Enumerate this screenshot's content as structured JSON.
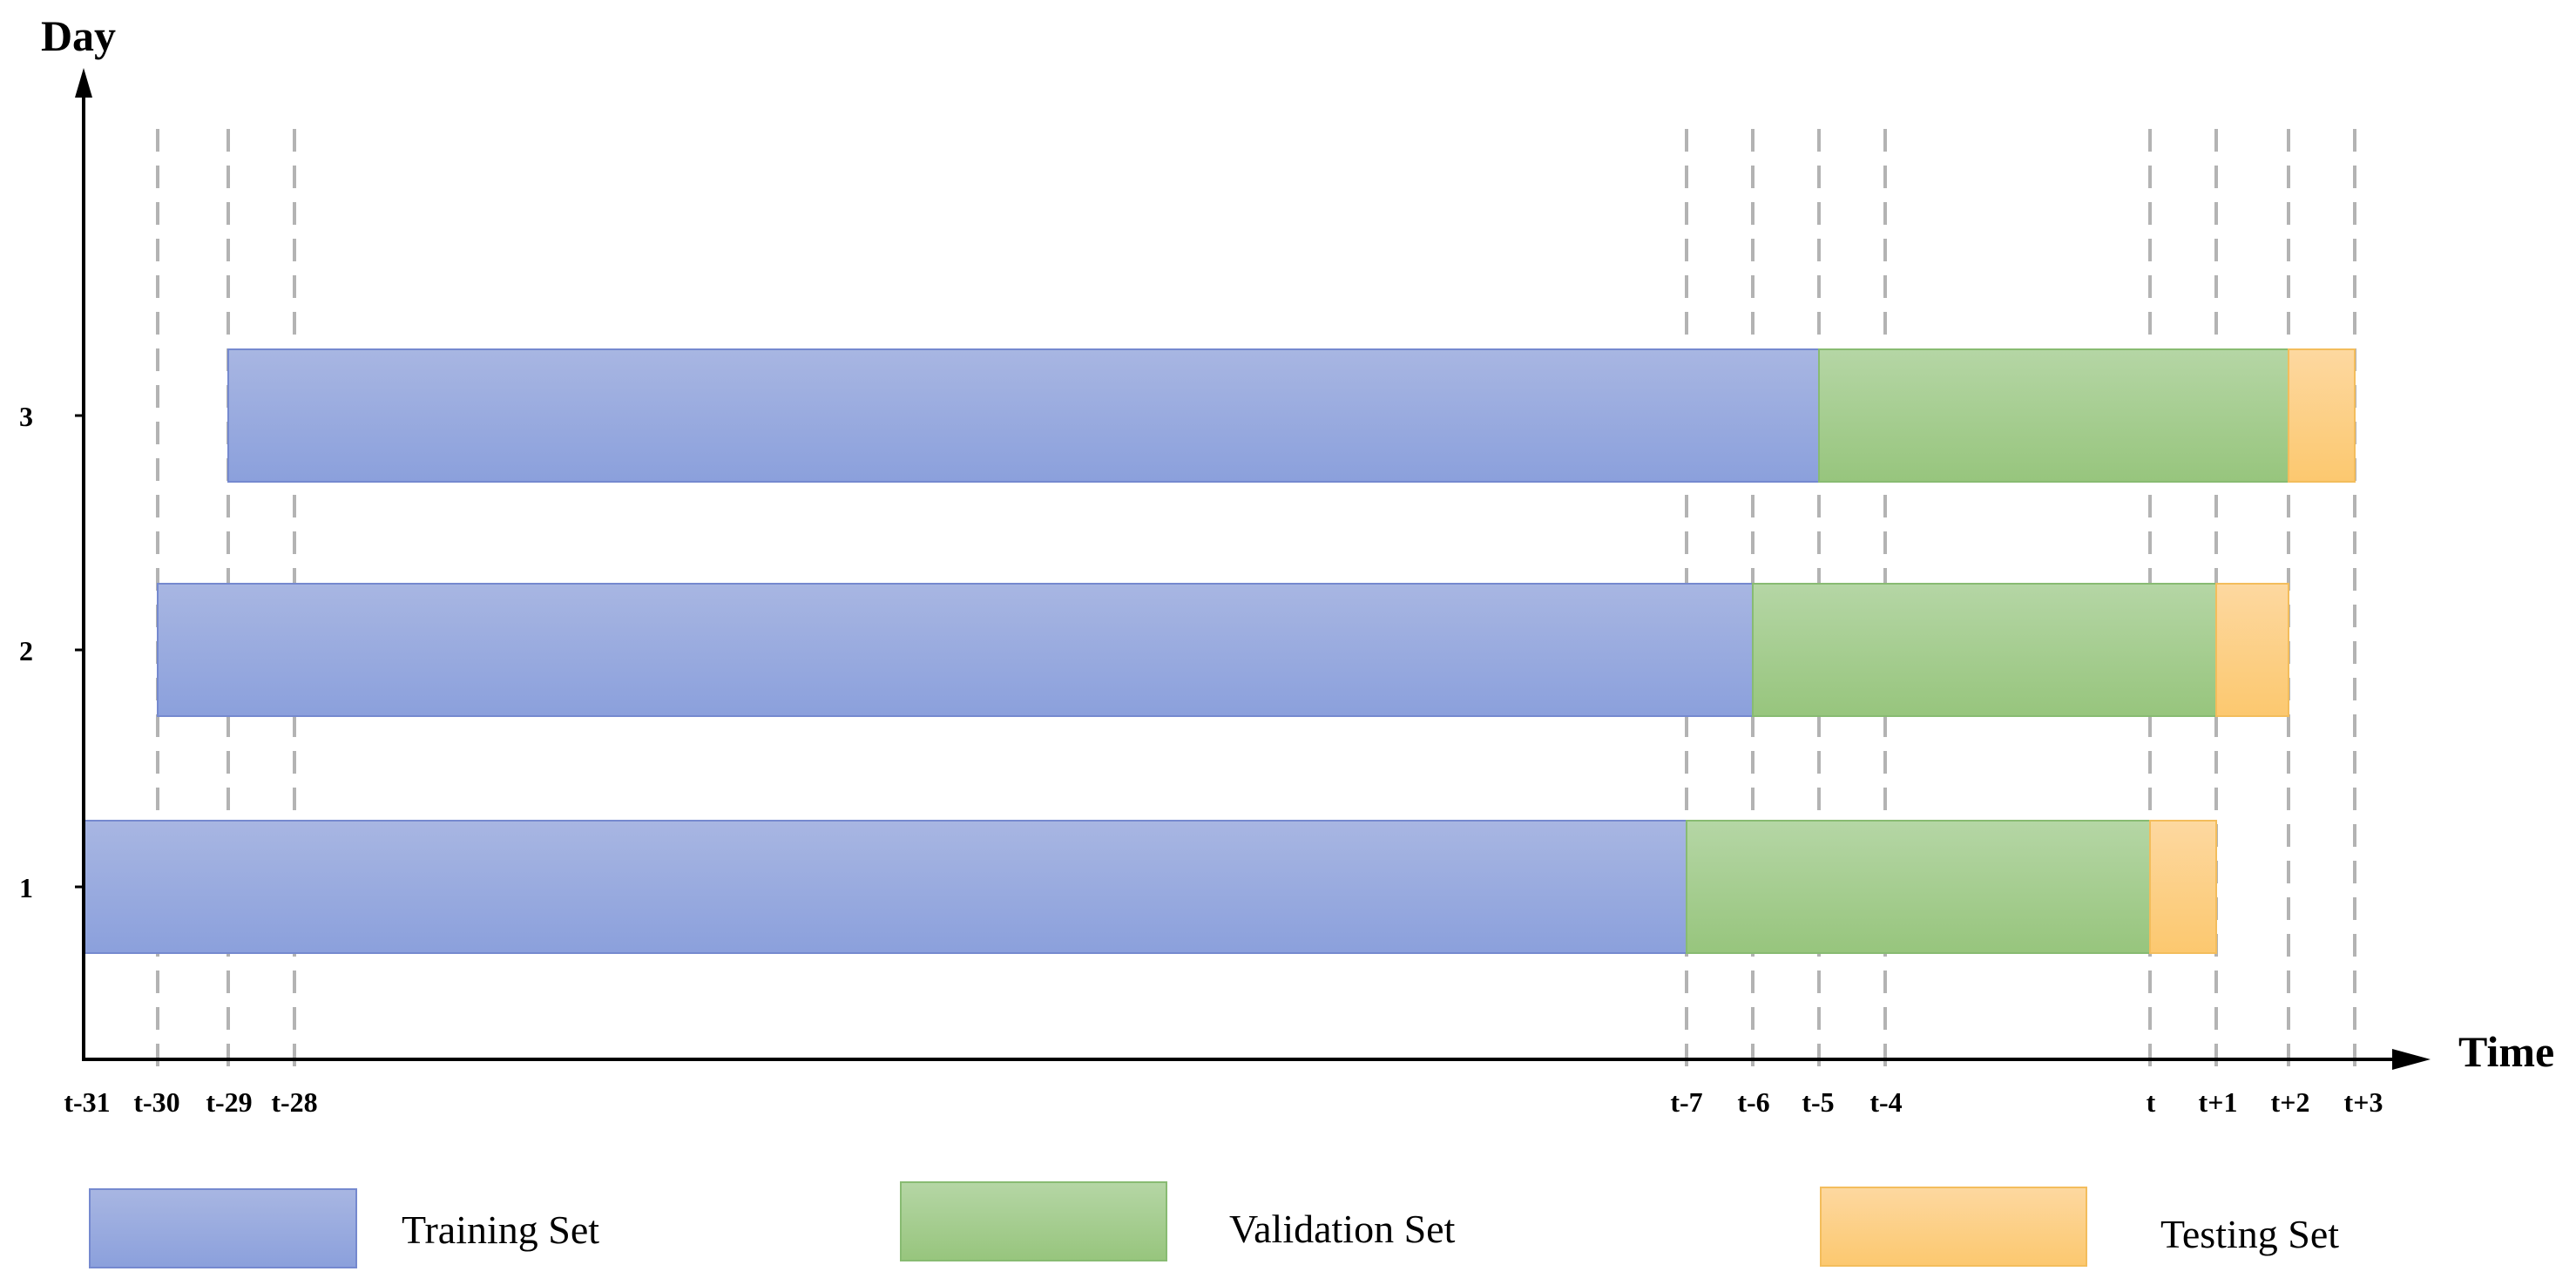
{
  "chart_data": {
    "type": "timeline",
    "title": "",
    "ylabel": "Day",
    "xlabel": "Time",
    "x_ticks": [
      "t-31",
      "t-30",
      "t-29",
      "t-28",
      "t-7",
      "t-6",
      "t-5",
      "t-4",
      "t",
      "t+1",
      "t+2",
      "t+3"
    ],
    "gridline_ticks": [
      "t-30",
      "t-29",
      "t-28",
      "t-7",
      "t-6",
      "t-5",
      "t-4",
      "t",
      "t+1",
      "t+2",
      "t+3"
    ],
    "y_ticks": [
      "1",
      "2",
      "3"
    ],
    "rows": [
      {
        "day": "1",
        "training": [
          "t-31",
          "t-7"
        ],
        "validation": [
          "t-7",
          "t"
        ],
        "testing": [
          "t",
          "t+1"
        ]
      },
      {
        "day": "2",
        "training": [
          "t-30",
          "t-6"
        ],
        "validation": [
          "t-6",
          "t+1"
        ],
        "testing": [
          "t+1",
          "t+2"
        ]
      },
      {
        "day": "3",
        "training": [
          "t-29",
          "t-5"
        ],
        "validation": [
          "t-5",
          "t+2"
        ],
        "testing": [
          "t+2",
          "t+3"
        ]
      }
    ],
    "legend": [
      {
        "key": "training",
        "label": "Training Set"
      },
      {
        "key": "validation",
        "label": "Validation Set"
      },
      {
        "key": "testing",
        "label": "Testing Set"
      }
    ],
    "colors": {
      "training_top": "#a8b6e2",
      "training_bottom": "#8ba0dc",
      "training_border": "#7589cf",
      "validation_top": "#b5d6a5",
      "validation_bottom": "#97c57d",
      "validation_border": "#88bb72",
      "testing_top": "#fdd8a0",
      "testing_bottom": "#fcc86f",
      "testing_border": "#f3bd5c",
      "gridline": "#b3b3b3",
      "axis": "#000000"
    }
  }
}
